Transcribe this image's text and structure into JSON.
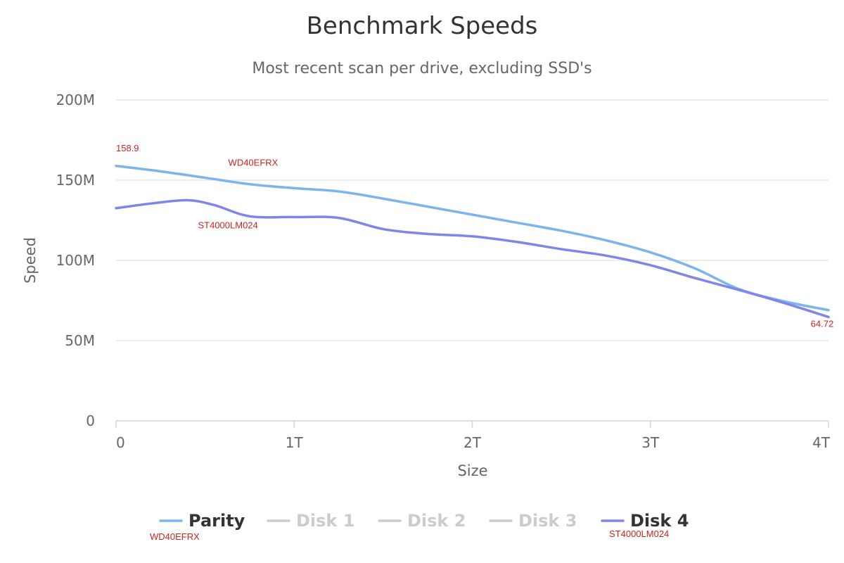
{
  "chart_data": {
    "type": "line",
    "title": "Benchmark Speeds",
    "subtitle": "Most recent scan per drive, excluding SSD's",
    "xlabel": "Size",
    "ylabel": "Speed",
    "xlim": [
      0,
      4
    ],
    "ylim": [
      0,
      200
    ],
    "x_ticks": [
      {
        "value": 0,
        "label": "0"
      },
      {
        "value": 1,
        "label": "1T"
      },
      {
        "value": 2,
        "label": "2T"
      },
      {
        "value": 3,
        "label": "3T"
      },
      {
        "value": 4,
        "label": "4T"
      }
    ],
    "y_ticks": [
      {
        "value": 0,
        "label": "0"
      },
      {
        "value": 50,
        "label": "50M"
      },
      {
        "value": 100,
        "label": "100M"
      },
      {
        "value": 150,
        "label": "150M"
      },
      {
        "value": 200,
        "label": "200M"
      }
    ],
    "grid": true,
    "legend_position": "bottom",
    "series": [
      {
        "name": "Parity",
        "color": "#7cb5ec",
        "visible": true,
        "x": [
          0,
          0.25,
          0.5,
          0.75,
          1.0,
          1.25,
          1.5,
          1.75,
          2.0,
          2.25,
          2.5,
          2.75,
          3.0,
          3.25,
          3.5,
          3.75,
          4.0
        ],
        "y": [
          158.9,
          155.5,
          151.5,
          147.5,
          145.0,
          143.0,
          138.5,
          133.5,
          128.5,
          123.5,
          118.5,
          112.5,
          105.0,
          95.0,
          82.0,
          74.5,
          69.0
        ]
      },
      {
        "name": "Disk 1",
        "color": "#cccccc",
        "visible": false,
        "x": [],
        "y": []
      },
      {
        "name": "Disk 2",
        "color": "#cccccc",
        "visible": false,
        "x": [],
        "y": []
      },
      {
        "name": "Disk 3",
        "color": "#cccccc",
        "visible": false,
        "x": [],
        "y": []
      },
      {
        "name": "Disk 4",
        "color": "#8085e9",
        "visible": true,
        "x": [
          0,
          0.2,
          0.4,
          0.55,
          0.75,
          1.0,
          1.25,
          1.5,
          1.75,
          2.0,
          2.25,
          2.5,
          2.75,
          3.0,
          3.25,
          3.5,
          3.75,
          4.0
        ],
        "y": [
          132.5,
          135.5,
          137.5,
          134.5,
          127.5,
          127.0,
          126.5,
          119.5,
          116.5,
          115.0,
          111.5,
          107.0,
          103.0,
          97.0,
          89.0,
          81.5,
          73.5,
          64.72
        ]
      }
    ],
    "annotations": [
      {
        "text": "158.9",
        "x": 0.0,
        "y": 168
      },
      {
        "text": "WD40EFRX",
        "x": 0.63,
        "y": 159
      },
      {
        "text": "ST4000LM024",
        "x": 0.46,
        "y": 120
      },
      {
        "text": "64.72",
        "x": 3.9,
        "y": 58.5
      }
    ],
    "legend_annotations": [
      {
        "text": "WD40EFRX",
        "series": "Parity"
      },
      {
        "text": "ST4000LM024",
        "series": "Disk 4"
      }
    ],
    "legend_text_color": {
      "visible": "#333333",
      "hidden": "#cccccc"
    }
  }
}
